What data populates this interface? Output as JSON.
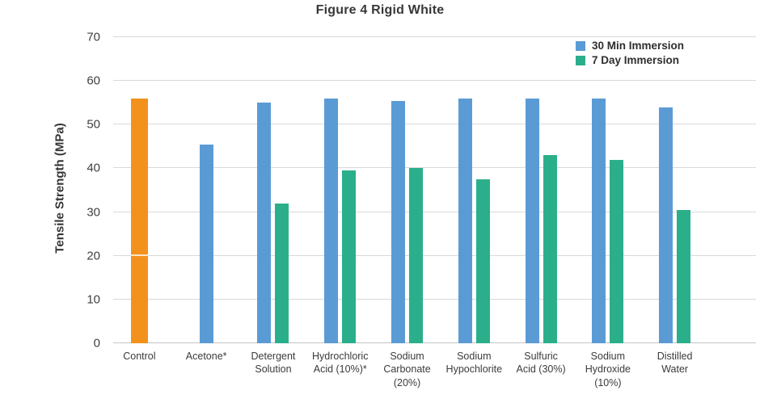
{
  "title": "Figure 4 Rigid White",
  "legend": [
    {
      "label": "30 Min Immersion",
      "color": "#5B9BD5"
    },
    {
      "label": "7 Day Immersion",
      "color": "#2BAF8B"
    }
  ],
  "colors": {
    "control_orange": "#F2921D",
    "immersion_30min_blue": "#5B9BD5",
    "immersion_7day_green": "#2BAF8B",
    "gridline": "#d9d9d9",
    "text": "#3b3b3b"
  },
  "chart_data": {
    "type": "bar",
    "title": "Figure 4 Rigid White",
    "ylabel": "Tensile Strength (MPa)",
    "xlabel": "",
    "ylim": [
      0,
      70
    ],
    "ytick_step": 10,
    "grid": true,
    "legend_position": "top-right",
    "categories": [
      "Control",
      "Acetone*",
      "Detergent Solution",
      "Hydrochloric Acid (10%)*",
      "Sodium Carbonate (20%)",
      "Sodium Hypochlorite",
      "Sulfuric Acid (30%)",
      "Sodium Hydroxide (10%)",
      "Distilled Water"
    ],
    "category_label_lines": [
      [
        "Control"
      ],
      [
        "Acetone*"
      ],
      [
        "Detergent",
        "Solution"
      ],
      [
        "Hydrochloric",
        "Acid (10%)*"
      ],
      [
        "Sodium",
        "Carbonate",
        "(20%)"
      ],
      [
        "Sodium",
        "Hypochlorite"
      ],
      [
        "Sulfuric",
        "Acid (30%)"
      ],
      [
        "Sodium",
        "Hydroxide",
        "(10%)"
      ],
      [
        "Distilled",
        "Water"
      ]
    ],
    "series": [
      {
        "name": "Control",
        "color": "#F2921D",
        "values": [
          56,
          null,
          null,
          null,
          null,
          null,
          null,
          null,
          null
        ]
      },
      {
        "name": "30 Min Immersion",
        "color": "#5B9BD5",
        "values": [
          null,
          45.5,
          55,
          56,
          55.5,
          56,
          56,
          56,
          54
        ]
      },
      {
        "name": "7 Day Immersion",
        "color": "#2BAF8B",
        "values": [
          null,
          null,
          32,
          39.5,
          40,
          37.5,
          43,
          42,
          30.5
        ]
      }
    ],
    "control_bar_white_line_at": 20
  }
}
